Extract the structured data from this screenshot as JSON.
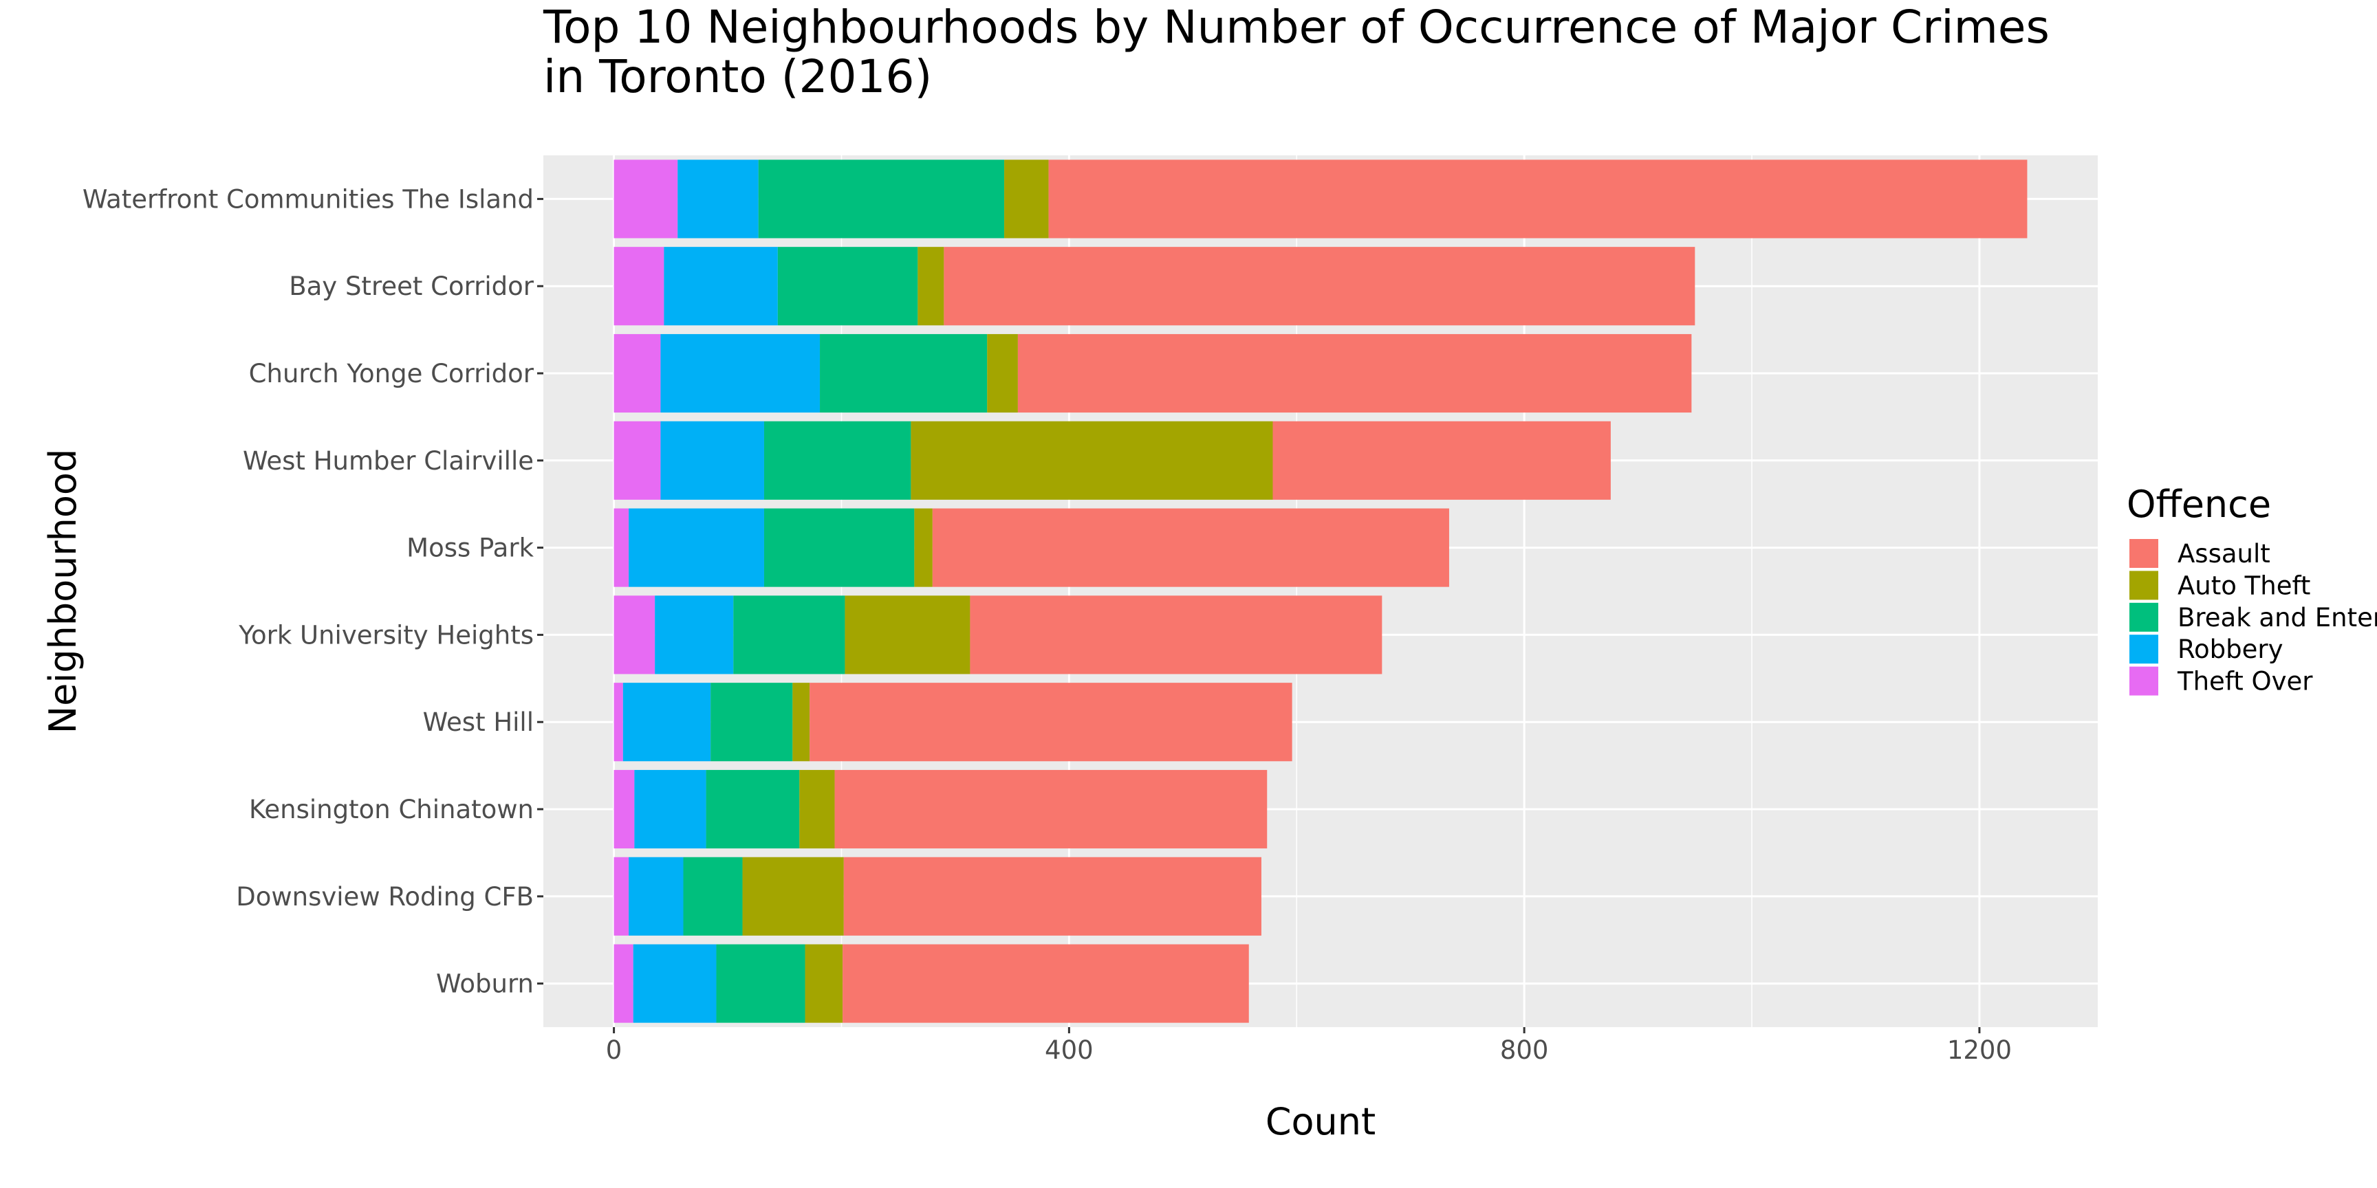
{
  "chart_data": {
    "type": "bar",
    "orientation": "horizontal",
    "stacked": true,
    "title": "Top 10 Neighbourhoods by Number of Occurrence of Major Crimes in Toronto (2016)",
    "title_lines": [
      "Top 10 Neighbourhoods by Number of Occurrence of Major Crimes",
      "in Toronto (2016)"
    ],
    "xlabel": "Count",
    "ylabel": "Neighbourhood",
    "xlim": [
      -62,
      1304
    ],
    "xticks": [
      0,
      400,
      800,
      1200
    ],
    "grid": true,
    "legend": {
      "title": "Offence",
      "position": "right"
    },
    "categories": [
      "Waterfront Communities The Island",
      "Bay Street Corridor",
      "Church Yonge Corridor",
      "West Humber Clairville",
      "Moss Park",
      "York University Heights",
      "West Hill",
      "Kensington Chinatown",
      "Downsview Roding CFB",
      "Woburn"
    ],
    "series": [
      {
        "name": "Theft Over",
        "color": "#E76BF3",
        "values": [
          56,
          44,
          41,
          41,
          13,
          36,
          8,
          18,
          13,
          17
        ]
      },
      {
        "name": "Robbery",
        "color": "#00B0F6",
        "values": [
          71,
          100,
          140,
          91,
          119,
          69,
          77,
          63,
          48,
          73
        ]
      },
      {
        "name": "Break and Enter",
        "color": "#00BF7D",
        "values": [
          216,
          123,
          147,
          129,
          132,
          98,
          72,
          82,
          52,
          78
        ]
      },
      {
        "name": "Auto Theft",
        "color": "#A3A500",
        "values": [
          39,
          23,
          27,
          318,
          16,
          110,
          15,
          31,
          89,
          33
        ]
      },
      {
        "name": "Assault",
        "color": "#F8766D",
        "values": [
          860,
          660,
          592,
          297,
          454,
          362,
          424,
          380,
          367,
          357
        ]
      }
    ],
    "legend_order": [
      "Assault",
      "Auto Theft",
      "Break and Enter",
      "Robbery",
      "Theft Over"
    ]
  }
}
